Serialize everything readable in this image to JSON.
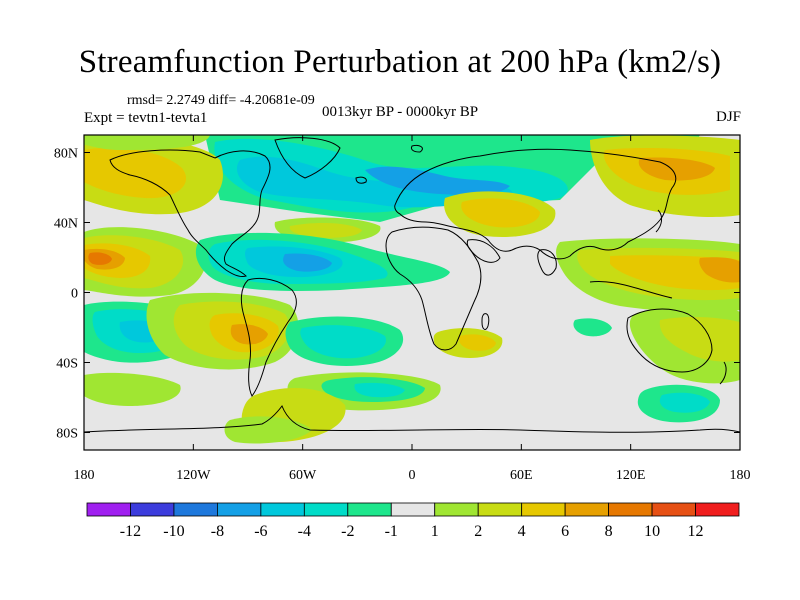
{
  "title": "Streamfunction Perturbation at 200 hPa (km2/s)",
  "stats": "rmsd= 2.2749 diff= -4.20681e-09",
  "experiment": "Expt = tevtn1-tevta1",
  "period": "0013kyr BP - 0000kyr BP",
  "season": "DJF",
  "axes": {
    "lon_ticks": [
      "180",
      "120W",
      "60W",
      "0",
      "60E",
      "120E",
      "180"
    ],
    "lat_ticks": [
      "80N",
      "40N",
      "0",
      "40S",
      "80S"
    ]
  },
  "colorbar": {
    "colors": [
      "#a020f0",
      "#3c3cdc",
      "#1e78dc",
      "#14a0e6",
      "#00c8dc",
      "#00dcc8",
      "#1ee68c",
      "#e6e6e6",
      "#a0e632",
      "#c8dc14",
      "#e6c800",
      "#e6a000",
      "#e67800",
      "#e65014",
      "#f01e1e"
    ],
    "labels": [
      "-12",
      "-10",
      "-8",
      "-6",
      "-4",
      "-2",
      "-1",
      "1",
      "2",
      "4",
      "6",
      "8",
      "10",
      "12"
    ]
  }
}
